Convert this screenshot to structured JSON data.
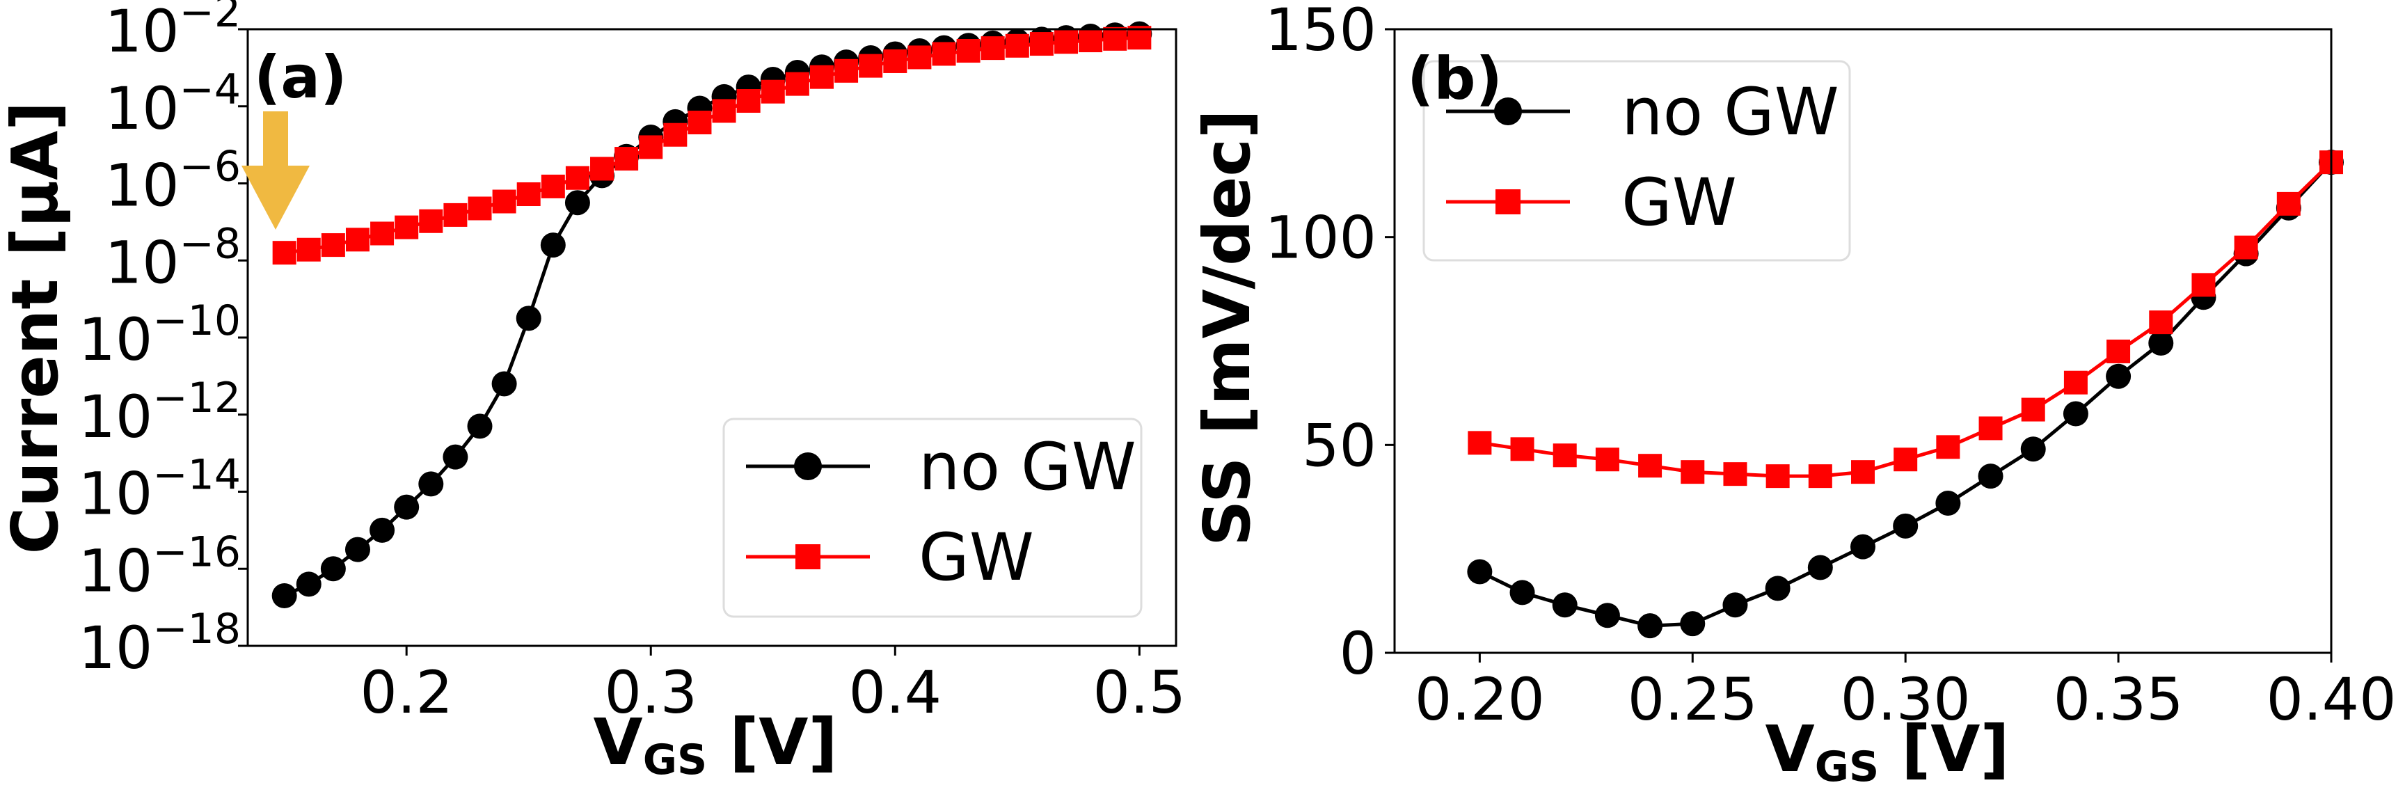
{
  "colors": {
    "no_gw": "#000000",
    "gw": "#ff0000",
    "arrow": "#f0b941",
    "axes": "#000000",
    "legend_border": "#dddddd"
  },
  "chart_data": [
    {
      "type": "line",
      "panel_label": "(a)",
      "xlabel": {
        "main": "V",
        "sub": "GS",
        "unit": " [V]"
      },
      "ylabel": "Current [µA]",
      "yscale": "log",
      "xlim": [
        0.135,
        0.515
      ],
      "ylim_log10": [
        -18,
        -2
      ],
      "x_ticks": [
        0.2,
        0.3,
        0.4,
        0.5
      ],
      "x_tick_labels": [
        "0.2",
        "0.3",
        "0.4",
        "0.5"
      ],
      "y_ticks_log10": [
        -2,
        -4,
        -6,
        -8,
        -10,
        -12,
        -14,
        -16,
        -18
      ],
      "y_tick_base": "10",
      "y_tick_exponents": [
        "−2",
        "−4",
        "−6",
        "−8",
        "−10",
        "−12",
        "−14",
        "−16",
        "−18"
      ],
      "legend": {
        "position": "lower-right",
        "entries": [
          "no GW",
          "GW"
        ]
      },
      "annotation": {
        "type": "arrow-down",
        "at_x": 0.145,
        "description": "yellow arrow pointing at GW leakage floor"
      },
      "x": [
        0.15,
        0.16,
        0.17,
        0.18,
        0.19,
        0.2,
        0.21,
        0.22,
        0.23,
        0.24,
        0.25,
        0.26,
        0.27,
        0.28,
        0.29,
        0.3,
        0.31,
        0.32,
        0.33,
        0.34,
        0.35,
        0.36,
        0.37,
        0.38,
        0.39,
        0.4,
        0.41,
        0.42,
        0.43,
        0.44,
        0.45,
        0.46,
        0.47,
        0.48,
        0.49,
        0.5
      ],
      "series": [
        {
          "name": "no GW",
          "marker": "circle",
          "log10_values": [
            -16.7,
            -16.4,
            -16.0,
            -15.5,
            -15.0,
            -14.4,
            -13.8,
            -13.1,
            -12.3,
            -11.2,
            -9.5,
            -7.6,
            -6.5,
            -5.8,
            -5.3,
            -4.8,
            -4.4,
            -4.05,
            -3.75,
            -3.5,
            -3.3,
            -3.12,
            -2.98,
            -2.85,
            -2.74,
            -2.64,
            -2.56,
            -2.48,
            -2.42,
            -2.36,
            -2.31,
            -2.26,
            -2.22,
            -2.18,
            -2.15,
            -2.12
          ]
        },
        {
          "name": "GW",
          "marker": "square",
          "log10_values": [
            -7.8,
            -7.72,
            -7.6,
            -7.46,
            -7.3,
            -7.14,
            -6.98,
            -6.82,
            -6.65,
            -6.47,
            -6.28,
            -6.08,
            -5.86,
            -5.62,
            -5.36,
            -5.06,
            -4.74,
            -4.42,
            -4.12,
            -3.86,
            -3.62,
            -3.42,
            -3.24,
            -3.08,
            -2.95,
            -2.83,
            -2.73,
            -2.64,
            -2.56,
            -2.49,
            -2.43,
            -2.38,
            -2.33,
            -2.29,
            -2.25,
            -2.22
          ]
        }
      ]
    },
    {
      "type": "line",
      "panel_label": "(b)",
      "xlabel": {
        "main": "V",
        "sub": "GS",
        "unit": " [V]"
      },
      "ylabel": "SS [mV/dec]",
      "xlim": [
        0.18,
        0.4
      ],
      "ylim": [
        0,
        150
      ],
      "x_ticks": [
        0.2,
        0.25,
        0.3,
        0.35,
        0.4
      ],
      "x_tick_labels": [
        "0.20",
        "0.25",
        "0.30",
        "0.35",
        "0.40"
      ],
      "y_ticks": [
        0,
        50,
        100,
        150
      ],
      "y_tick_labels": [
        "0",
        "50",
        "100",
        "150"
      ],
      "legend": {
        "position": "upper-left",
        "entries": [
          "no GW",
          "GW"
        ]
      },
      "x": [
        0.2,
        0.21,
        0.22,
        0.23,
        0.24,
        0.25,
        0.26,
        0.27,
        0.28,
        0.29,
        0.3,
        0.31,
        0.32,
        0.33,
        0.34,
        0.35,
        0.36,
        0.37,
        0.38,
        0.39,
        0.4
      ],
      "series": [
        {
          "name": "no GW",
          "marker": "circle",
          "values": [
            19.5,
            14.5,
            11.5,
            9.0,
            6.5,
            7.0,
            11.5,
            15.5,
            20.5,
            25.5,
            30.5,
            36.0,
            42.5,
            49.0,
            57.5,
            66.5,
            74.5,
            85.5,
            96.0,
            107.0,
            118.0
          ]
        },
        {
          "name": "GW",
          "marker": "square",
          "values": [
            50.5,
            49.0,
            47.5,
            46.5,
            45.0,
            43.5,
            43.0,
            42.5,
            42.5,
            43.5,
            46.5,
            49.5,
            54.0,
            58.5,
            65.0,
            72.5,
            79.5,
            88.5,
            97.5,
            108.0,
            118.0
          ]
        }
      ]
    }
  ]
}
